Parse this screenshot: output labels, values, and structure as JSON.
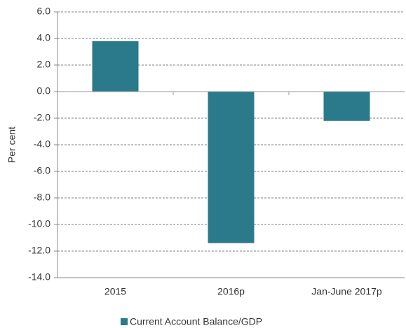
{
  "chart_data": {
    "type": "bar",
    "y_label": "Per cent",
    "categories": [
      "2015",
      "2016p",
      "Jan-June 2017p"
    ],
    "series": [
      {
        "name": "Current Account Balance/GDP",
        "color": "#2b7a8b",
        "values": [
          3.8,
          -11.4,
          -2.2
        ]
      }
    ],
    "ylim": [
      -14,
      6
    ],
    "yticks": [
      {
        "value": 6,
        "label": "6.0"
      },
      {
        "value": 4,
        "label": "4.0"
      },
      {
        "value": 2,
        "label": "2.0"
      },
      {
        "value": 0,
        "label": "0.0"
      },
      {
        "value": -2,
        "label": "-2.0"
      },
      {
        "value": -4,
        "label": "-4.0"
      },
      {
        "value": -6,
        "label": "-6.0"
      },
      {
        "value": -8,
        "label": "-8.0"
      },
      {
        "value": -10,
        "label": "-10.0"
      },
      {
        "value": -12,
        "label": "-12.0"
      },
      {
        "value": -14,
        "label": "-14.0"
      }
    ],
    "grid": true,
    "legend": "bottom"
  }
}
